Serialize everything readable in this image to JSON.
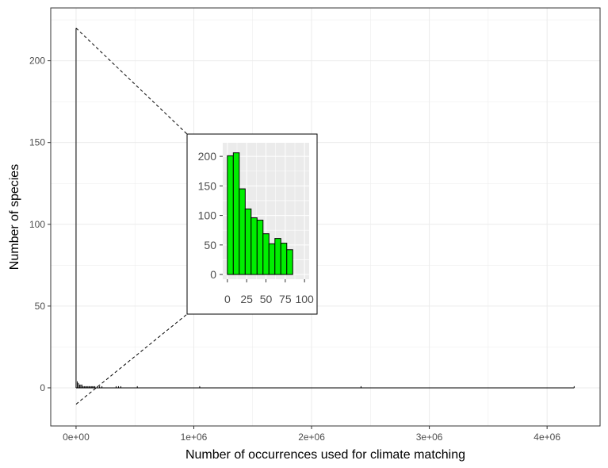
{
  "colors": {
    "panel_border": "#333333",
    "grid": "#ebebeb",
    "inset_panel_bg": "#ebebeb",
    "inset_grid": "#ffffff",
    "bar_fill": "#00ee00",
    "bar_stroke": "#000000",
    "line": "#000000"
  },
  "chart_data": [
    {
      "type": "bar",
      "role": "main",
      "xlabel": "Number of occurrences used for climate matching",
      "ylabel": "Number of species",
      "xlim": [
        -215000,
        4450000
      ],
      "ylim": [
        -23.3,
        232.3
      ],
      "x_ticks": [
        0,
        1000000,
        2000000,
        3000000,
        4000000
      ],
      "x_tick_labels": [
        "0e+00",
        "1e+06",
        "2e+06",
        "3e+06",
        "4e+06"
      ],
      "y_ticks": [
        0,
        50,
        100,
        150,
        200
      ],
      "y_tick_labels": [
        "0",
        "50",
        "100",
        "150",
        "200"
      ],
      "grid": true,
      "bars": [
        {
          "x": 0,
          "y": 220
        },
        {
          "x": 10000,
          "y": 4
        },
        {
          "x": 20000,
          "y": 3
        },
        {
          "x": 30000,
          "y": 2
        },
        {
          "x": 40000,
          "y": 2
        },
        {
          "x": 50000,
          "y": 2
        },
        {
          "x": 60000,
          "y": 1
        },
        {
          "x": 70000,
          "y": 1
        },
        {
          "x": 80000,
          "y": 1
        },
        {
          "x": 90000,
          "y": 1
        },
        {
          "x": 100000,
          "y": 1
        },
        {
          "x": 110000,
          "y": 1
        },
        {
          "x": 120000,
          "y": 1
        },
        {
          "x": 130000,
          "y": 1
        },
        {
          "x": 140000,
          "y": 1
        },
        {
          "x": 150000,
          "y": 1
        },
        {
          "x": 160000,
          "y": 1
        },
        {
          "x": 180000,
          "y": 1
        },
        {
          "x": 200000,
          "y": 1
        },
        {
          "x": 220000,
          "y": 1
        },
        {
          "x": 340000,
          "y": 1
        },
        {
          "x": 360000,
          "y": 1
        },
        {
          "x": 380000,
          "y": 1
        },
        {
          "x": 520000,
          "y": 1
        },
        {
          "x": 1050000,
          "y": 1
        },
        {
          "x": 2420000,
          "y": 1
        },
        {
          "x": 4230000,
          "y": 1
        }
      ],
      "zoom_lines": {
        "from": [
          [
            0,
            220
          ],
          [
            0,
            -10
          ]
        ],
        "to_inset_corner": [
          "top-left",
          "bottom-left"
        ]
      }
    },
    {
      "type": "bar",
      "role": "inset",
      "xlim": [
        -6,
        106
      ],
      "ylim": [
        -8,
        223
      ],
      "x_ticks": [
        0,
        25,
        50,
        75,
        100
      ],
      "x_tick_labels": [
        "0",
        "25",
        "50",
        "75",
        "100"
      ],
      "y_ticks": [
        0,
        50,
        100,
        150,
        200
      ],
      "y_tick_labels": [
        "0",
        "50",
        "100",
        "150",
        "200"
      ],
      "grid": true,
      "bin_width": 7.7,
      "bars": [
        {
          "x": 0,
          "y": 201
        },
        {
          "x": 7.7,
          "y": 206
        },
        {
          "x": 15.4,
          "y": 145
        },
        {
          "x": 23.1,
          "y": 111
        },
        {
          "x": 30.8,
          "y": 96
        },
        {
          "x": 38.5,
          "y": 92
        },
        {
          "x": 46.2,
          "y": 69
        },
        {
          "x": 53.9,
          "y": 52
        },
        {
          "x": 61.6,
          "y": 61
        },
        {
          "x": 69.3,
          "y": 53
        },
        {
          "x": 77.0,
          "y": 42
        }
      ]
    }
  ]
}
